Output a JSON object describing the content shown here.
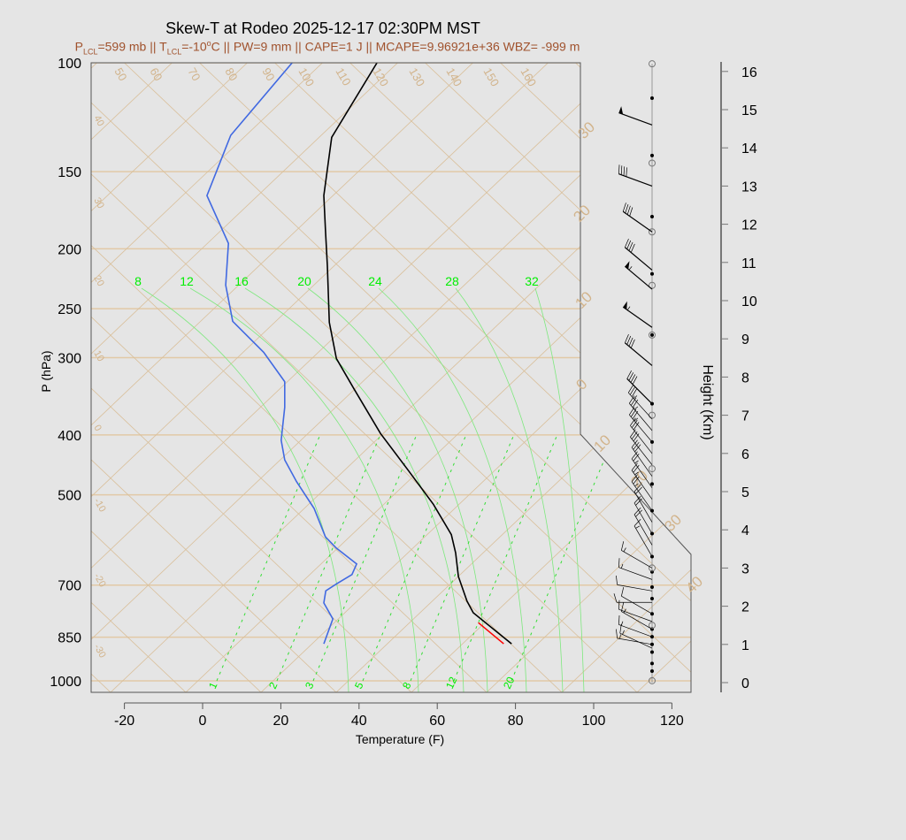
{
  "chart_data": {
    "type": "line",
    "title": "Skew-T at Rodeo 2025-12-17 02:30PM MST",
    "subtitle": [
      {
        "t": "P"
      },
      {
        "sub": "LCL"
      },
      {
        "t": "=599 mb || T"
      },
      {
        "sub": "LCL"
      },
      {
        "t": "=-10"
      },
      {
        "sup": "o"
      },
      {
        "t": "C || PW=9 mm || CAPE=1 J || MCAPE=9.96921e+36 WBZ= -999 m"
      }
    ],
    "xlabel": "Temperature (F)",
    "ylabel": "P (hPa)",
    "y2label": "Height (Km)",
    "xlim": [
      -28,
      125
    ],
    "ylim": [
      1050,
      100
    ],
    "y_scale": "log",
    "x_ticks": [
      -20,
      0,
      20,
      40,
      60,
      80,
      100,
      120
    ],
    "y_ticks": [
      100,
      150,
      200,
      250,
      300,
      400,
      500,
      700,
      850,
      1000
    ],
    "y2_ticks": [
      0,
      1,
      2,
      3,
      4,
      5,
      6,
      7,
      8,
      9,
      10,
      11,
      12,
      13,
      14,
      15,
      16
    ],
    "isotherm_labels_top": [
      "50",
      "60",
      "70",
      "80",
      "90",
      "100",
      "110",
      "120",
      "130",
      "140",
      "150",
      "160"
    ],
    "isotherm_labels_left": [
      "40",
      "30",
      "20",
      "10",
      "0",
      "-10",
      "-20",
      "-30"
    ],
    "isotherm_labels_right": [
      "-30",
      "-20",
      "-10",
      "0",
      "10",
      "20",
      "30",
      "40"
    ],
    "moist_adiabat_labels": [
      "8",
      "12",
      "16",
      "20",
      "24",
      "28",
      "32"
    ],
    "mixing_ratio_labels": [
      "1",
      "2",
      "3",
      "5",
      "8",
      "12",
      "20"
    ],
    "colors": {
      "temperature": "#000000",
      "dewpoint": "#4169e1",
      "parcel": "#ff0000",
      "grid": "#d2b48c",
      "moist": "#00ee00",
      "title_sub": "#a0522d"
    },
    "series": [
      {
        "name": "temperature",
        "points": [
          [
            871,
            79
          ],
          [
            776,
            69.2
          ],
          [
            743,
            67.6
          ],
          [
            678,
            65.4
          ],
          [
            621,
            64.7
          ],
          [
            580,
            63.6
          ],
          [
            518,
            59
          ],
          [
            454,
            52.3
          ],
          [
            398,
            45.5
          ],
          [
            337,
            38.7
          ],
          [
            301,
            34.2
          ],
          [
            263,
            32.4
          ],
          [
            213,
            31.9
          ],
          [
            186,
            31.4
          ],
          [
            164,
            31
          ],
          [
            132,
            33
          ],
          [
            100,
            44.6
          ]
        ]
      },
      {
        "name": "dewpoint",
        "points": [
          [
            871,
            31
          ],
          [
            794,
            33.3
          ],
          [
            748,
            31
          ],
          [
            715,
            31.5
          ],
          [
            697,
            34.2
          ],
          [
            673,
            38.2
          ],
          [
            647,
            39.4
          ],
          [
            610,
            34.2
          ],
          [
            585,
            31.4
          ],
          [
            526,
            28.5
          ],
          [
            476,
            24
          ],
          [
            439,
            21
          ],
          [
            408,
            20.1
          ],
          [
            361,
            21
          ],
          [
            328,
            21
          ],
          [
            294,
            15.6
          ],
          [
            262,
            7.7
          ],
          [
            229,
            5.9
          ],
          [
            196,
            6.6
          ],
          [
            164,
            1.1
          ],
          [
            131,
            7.2
          ],
          [
            100,
            22.9
          ]
        ]
      },
      {
        "name": "parcel",
        "points": [
          [
            871,
            77
          ],
          [
            805,
            70.5
          ]
        ]
      }
    ],
    "wind_barbs": [
      [
        14.6,
        290,
        50
      ],
      [
        13.0,
        290,
        40
      ],
      [
        11.8,
        305,
        40
      ],
      [
        10.8,
        310,
        40
      ],
      [
        10.3,
        310,
        55
      ],
      [
        9.3,
        305,
        55
      ],
      [
        8.3,
        310,
        40
      ],
      [
        7.3,
        315,
        40
      ],
      [
        6.9,
        318,
        35
      ],
      [
        6.6,
        320,
        35
      ],
      [
        6.3,
        320,
        35
      ],
      [
        6.0,
        322,
        30
      ],
      [
        5.7,
        322,
        30
      ],
      [
        5.4,
        325,
        30
      ],
      [
        5.1,
        325,
        25
      ],
      [
        4.8,
        325,
        25
      ],
      [
        4.5,
        325,
        25
      ],
      [
        4.2,
        330,
        20
      ],
      [
        3.9,
        330,
        20
      ],
      [
        3.6,
        330,
        20
      ],
      [
        3.3,
        330,
        15
      ],
      [
        3.0,
        300,
        15
      ],
      [
        2.7,
        290,
        15
      ],
      [
        2.4,
        280,
        10
      ],
      [
        2.1,
        270,
        10
      ],
      [
        1.8,
        300,
        10
      ],
      [
        1.6,
        290,
        10
      ],
      [
        1.4,
        300,
        15
      ],
      [
        1.2,
        290,
        15
      ],
      [
        1.0,
        280,
        15
      ],
      [
        0.9,
        295,
        15
      ]
    ],
    "height_dots": [
      15.3,
      13.8,
      12.2,
      10.7,
      9.1,
      7.3,
      6.3,
      5.2,
      4.5,
      3.9,
      3.3,
      2.9,
      2.5,
      2.2,
      1.8,
      1.4,
      1.2,
      1.0,
      0.8,
      0.5,
      0.3
    ],
    "height_circles": [
      16.2,
      13.6,
      11.8,
      10.4,
      9.1,
      7.0,
      5.6,
      3.0,
      1.5,
      0.05
    ]
  }
}
